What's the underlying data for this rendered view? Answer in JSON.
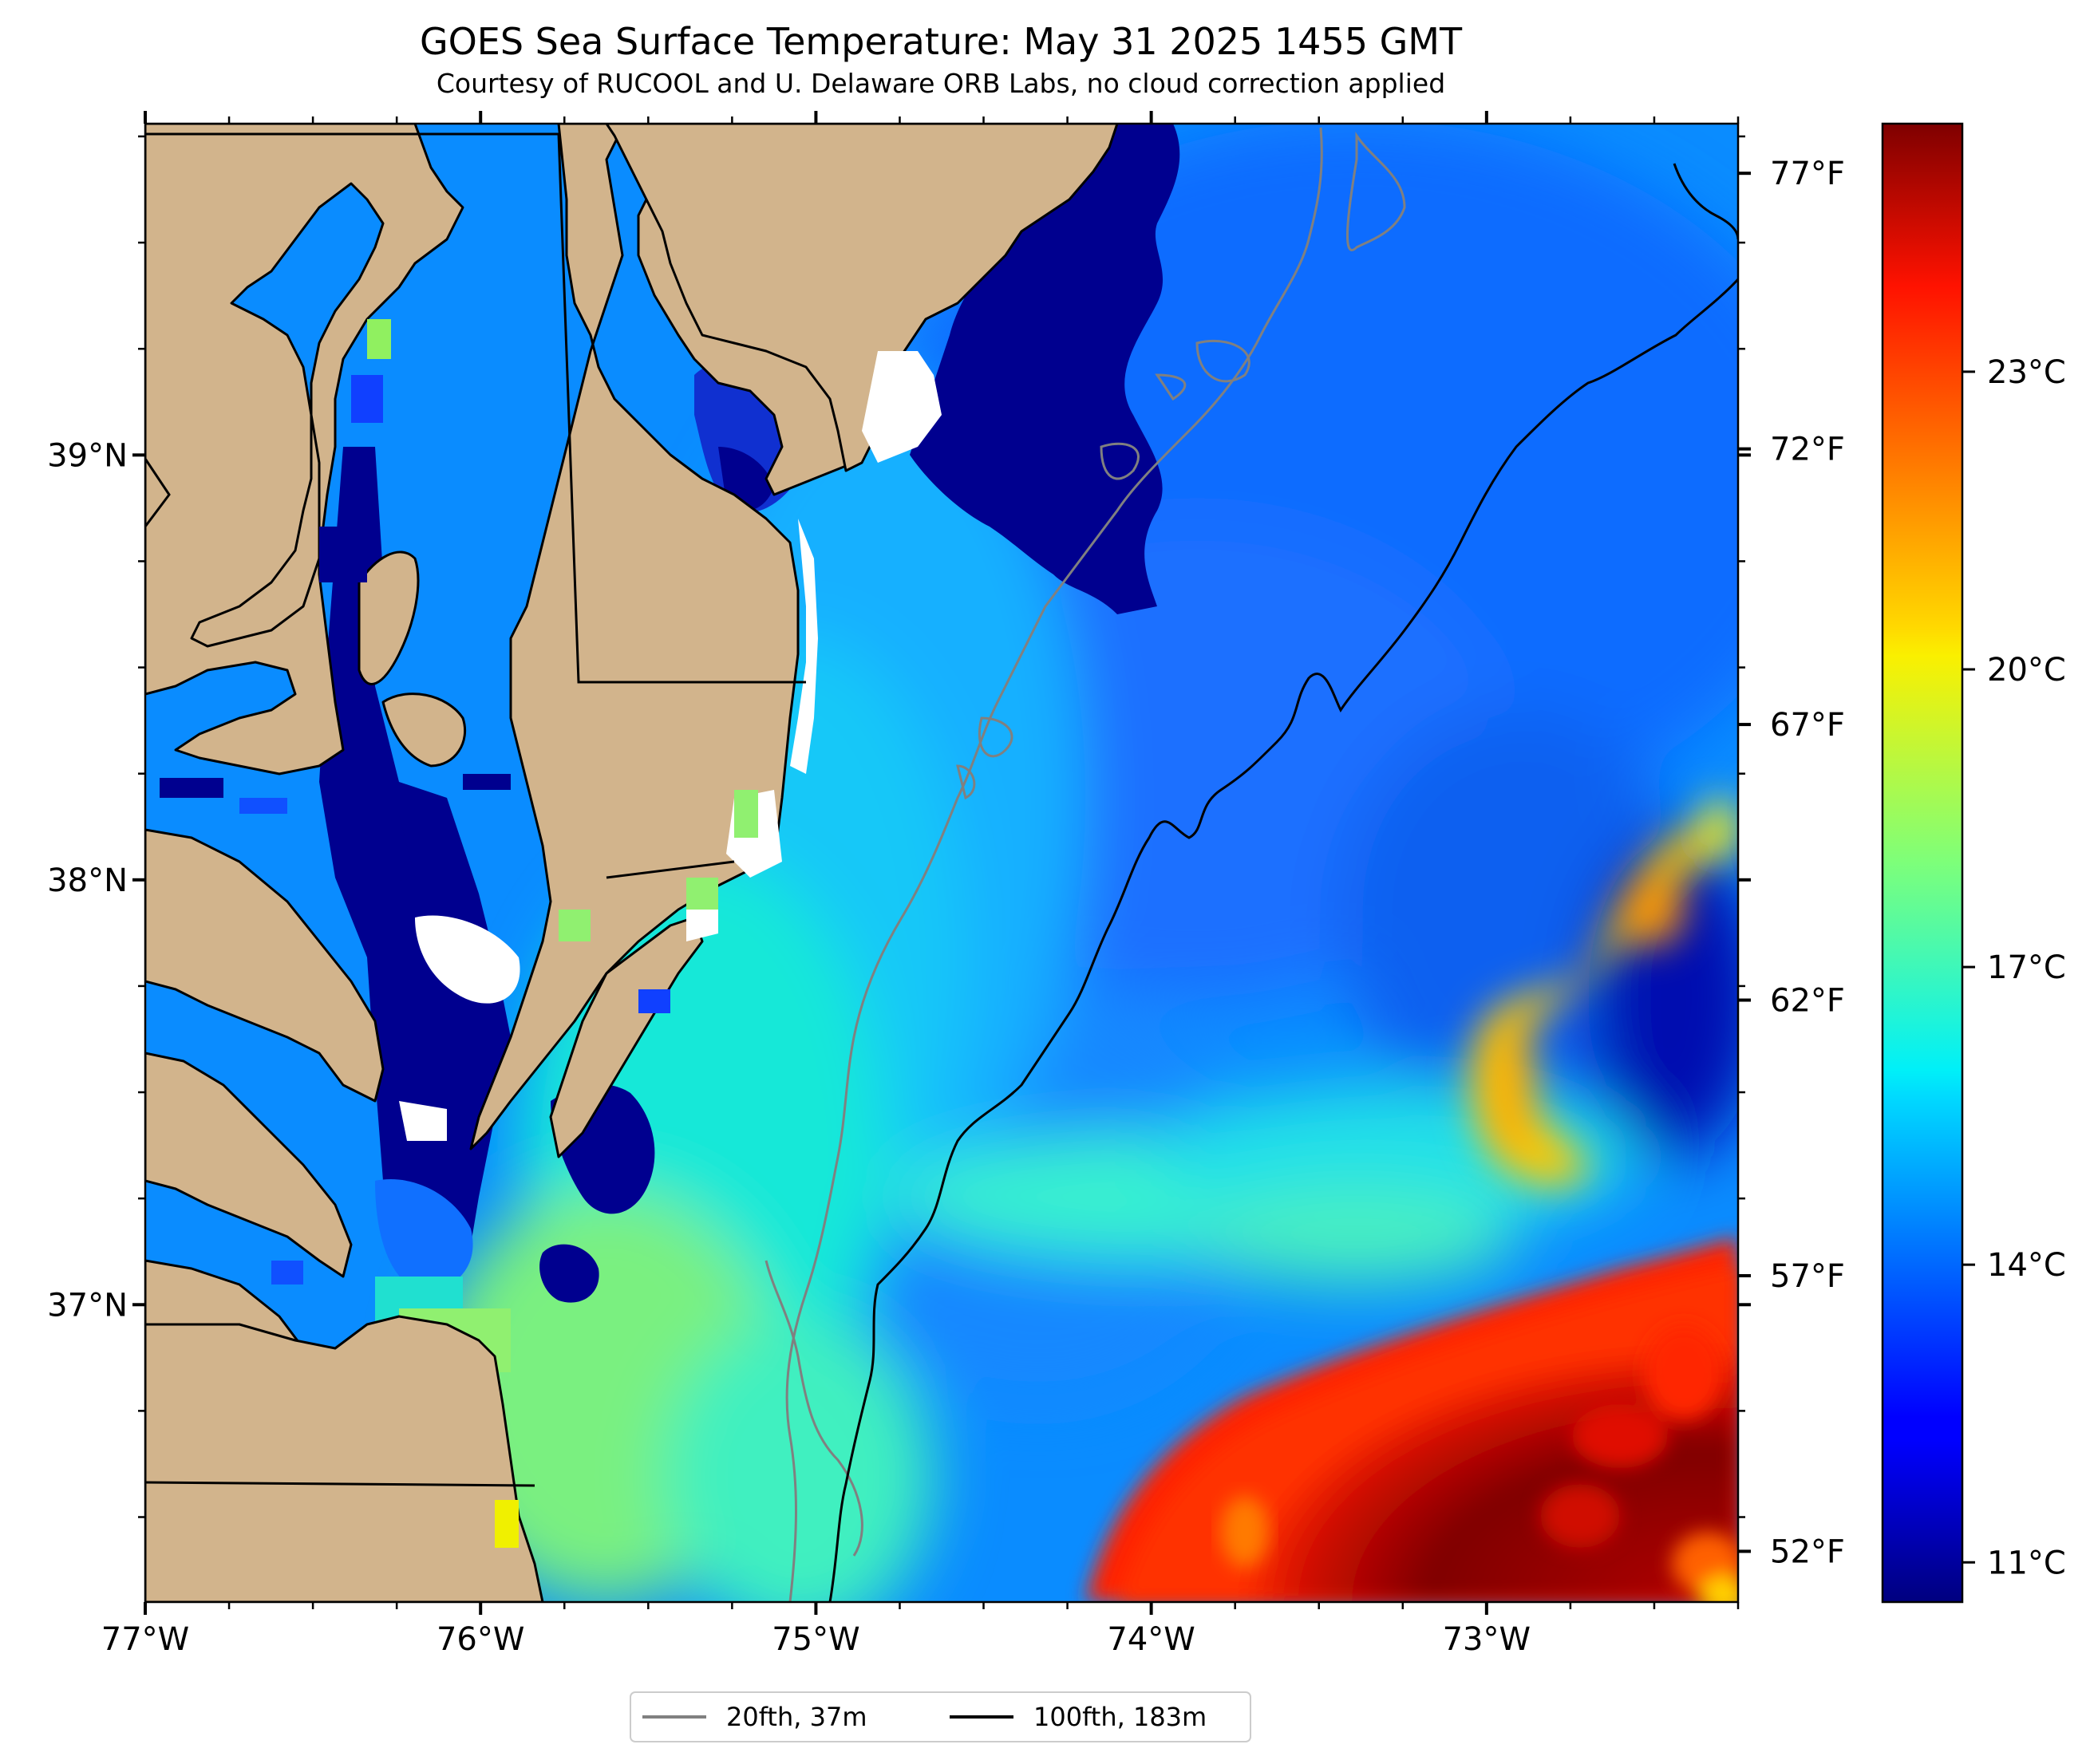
{
  "title": "GOES Sea Surface Temperature: May 31 2025 1455 GMT",
  "subtitle": "Courtesy of RUCOOL and U. Delaware ORB Labs, no cloud correction applied",
  "map": {
    "lon_range": [
      -77.0,
      -72.25
    ],
    "lat_range": [
      36.3,
      39.78
    ],
    "lon_ticks": [
      {
        "value": -77,
        "label": "77°W"
      },
      {
        "value": -76,
        "label": "76°W"
      },
      {
        "value": -75,
        "label": "75°W"
      },
      {
        "value": -74,
        "label": "74°W"
      },
      {
        "value": -73,
        "label": "73°W"
      }
    ],
    "lat_ticks": [
      {
        "value": 39,
        "label": "39°N"
      },
      {
        "value": 38,
        "label": "38°N"
      },
      {
        "value": 37,
        "label": "37°N"
      }
    ],
    "f_ticks": [
      {
        "value": 77,
        "label": "77°F"
      },
      {
        "value": 72,
        "label": "72°F"
      },
      {
        "value": 67,
        "label": "67°F"
      },
      {
        "value": 62,
        "label": "62°F"
      },
      {
        "value": 57,
        "label": "57°F"
      },
      {
        "value": 52,
        "label": "52°F"
      }
    ],
    "land_color": "#d2b48c",
    "missing_color": "#ffffff"
  },
  "colorbar": {
    "range_c": [
      10.6,
      25.5
    ],
    "colormap": "jet",
    "ticks": [
      {
        "value": 11,
        "label": "11°C"
      },
      {
        "value": 14,
        "label": "14°C"
      },
      {
        "value": 17,
        "label": "17°C"
      },
      {
        "value": 20,
        "label": "20°C"
      },
      {
        "value": 23,
        "label": "23°C"
      }
    ]
  },
  "legend": {
    "items": [
      {
        "label": "20fth, 37m",
        "color": "#808080"
      },
      {
        "label": "100fth, 183m",
        "color": "#000000"
      }
    ]
  }
}
